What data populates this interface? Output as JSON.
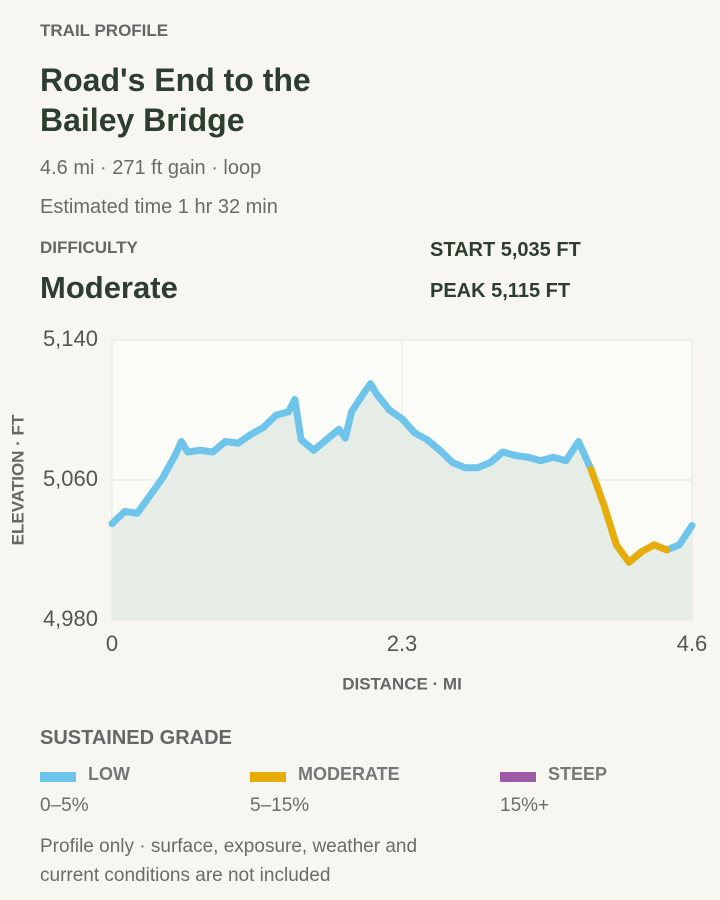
{
  "header": {
    "eyebrow": "TRAIL PROFILE",
    "title": "Road's End to the Bailey Bridge",
    "meta": "4.6 mi · 271 ft gain · loop",
    "time": "Estimated time 1 hr 32 min",
    "difficulty_label": "DIFFICULTY",
    "difficulty": "Moderate",
    "start": "START 5,035 FT",
    "peak": "PEAK 5,115 FT"
  },
  "chart_data": {
    "type": "line",
    "ylabel": "ELEVATION · FT",
    "xlabel": "DISTANCE · MI",
    "x": [
      0,
      0.1,
      0.2,
      0.3,
      0.4,
      0.5,
      0.55,
      0.6,
      0.7,
      0.8,
      0.9,
      1.0,
      1.1,
      1.2,
      1.3,
      1.4,
      1.45,
      1.5,
      1.6,
      1.7,
      1.8,
      1.85,
      1.9,
      2.0,
      2.05,
      2.1,
      2.2,
      2.3,
      2.4,
      2.5,
      2.6,
      2.7,
      2.8,
      2.9,
      3.0,
      3.1,
      3.2,
      3.3,
      3.4,
      3.5,
      3.6,
      3.7,
      3.8,
      3.9,
      4.0,
      4.1,
      4.2,
      4.3,
      4.4,
      4.5,
      4.6
    ],
    "series": [
      {
        "name": "LOW",
        "range": "0–5%",
        "color": "#6ec4ea",
        "values": [
          5035,
          5042,
          5041,
          5051,
          5061,
          5074,
          5082,
          5076,
          5077,
          5076,
          5082,
          5081,
          5086,
          5090,
          5097,
          5099,
          5106,
          5083,
          5077,
          5083,
          5089,
          5084,
          5099,
          5110,
          5115,
          5109,
          5100,
          5095,
          5087,
          5083,
          5077,
          5070,
          5067,
          5067,
          5070,
          5076,
          5074,
          5073,
          5071,
          5073,
          5071,
          5082,
          5066,
          null,
          null,
          5013,
          5019,
          null,
          5020,
          5023,
          5034
        ]
      },
      {
        "name": "MODERATE",
        "range": "5–15%",
        "color": "#e6ad0a",
        "values": [
          null,
          null,
          null,
          null,
          null,
          null,
          null,
          null,
          null,
          null,
          null,
          null,
          null,
          null,
          null,
          null,
          null,
          null,
          null,
          null,
          null,
          null,
          null,
          null,
          null,
          null,
          null,
          null,
          null,
          null,
          null,
          null,
          null,
          null,
          null,
          null,
          null,
          null,
          null,
          null,
          null,
          null,
          5066,
          5046,
          5023,
          5013,
          5019,
          5023,
          5020,
          null,
          null
        ]
      },
      {
        "name": "STEEP",
        "range": "15%+",
        "color": "#9b5ba6",
        "values": [
          null,
          null,
          null,
          null,
          null,
          null,
          null,
          null,
          null,
          null,
          null,
          null,
          null,
          null,
          null,
          null,
          null,
          null,
          null,
          null,
          null,
          null,
          null,
          null,
          null,
          null,
          null,
          null,
          null,
          null,
          null,
          null,
          null,
          null,
          null,
          null,
          null,
          null,
          null,
          null,
          null,
          null,
          null,
          null,
          null,
          null,
          null,
          null,
          null,
          null,
          null
        ]
      }
    ],
    "xlim": [
      0,
      4.6
    ],
    "xticks": [
      0,
      2.3,
      4.6
    ],
    "ylim": [
      4980,
      5140
    ],
    "yticks": [
      {
        "value": 4980,
        "label": "4,980"
      },
      {
        "value": 5060,
        "label": "5,060"
      },
      {
        "value": 5140,
        "label": "5,140"
      }
    ],
    "grid": true,
    "legend_title": "SUSTAINED GRADE"
  },
  "footnote": "Profile only · surface, exposure, weather and current conditions are not included"
}
